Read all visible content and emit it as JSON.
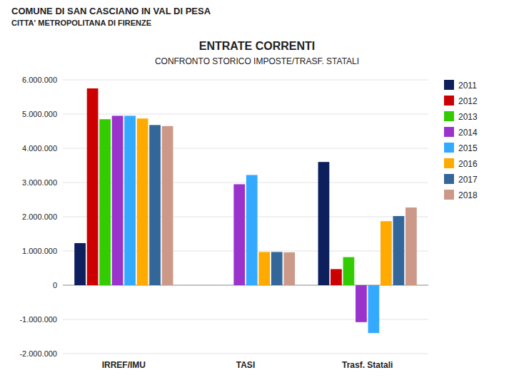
{
  "chart_data": {
    "type": "bar",
    "title": "ENTRATE CORRENTI",
    "subtitle": "CONFRONTO STORICO IMPOSTE/TRASF. STATALI",
    "annotations": [
      "COMUNE DI SAN CASCIANO IN VAL DI PESA",
      "CITTA' METROPOLITANA DI FIRENZE"
    ],
    "categories": [
      "IRREF/IMU",
      "TASI",
      "Trasf. Statali"
    ],
    "series": [
      {
        "name": "2011",
        "color": "#0d1f5c",
        "values": [
          1230000,
          0,
          3600000
        ]
      },
      {
        "name": "2012",
        "color": "#cc0000",
        "values": [
          5750000,
          0,
          470000
        ]
      },
      {
        "name": "2013",
        "color": "#33cc00",
        "values": [
          4850000,
          0,
          820000
        ]
      },
      {
        "name": "2014",
        "color": "#9933cc",
        "values": [
          4950000,
          2950000,
          -1080000
        ]
      },
      {
        "name": "2015",
        "color": "#33aaff",
        "values": [
          4950000,
          3220000,
          -1400000
        ]
      },
      {
        "name": "2016",
        "color": "#ffaa00",
        "values": [
          4870000,
          970000,
          1870000
        ]
      },
      {
        "name": "2017",
        "color": "#336699",
        "values": [
          4680000,
          970000,
          2020000
        ]
      },
      {
        "name": "2018",
        "color": "#cc9988",
        "values": [
          4650000,
          960000,
          2270000
        ]
      }
    ],
    "ylim": [
      -2000000,
      6000000
    ],
    "yticks": [
      {
        "value": -2000000,
        "label": "-2.000.000"
      },
      {
        "value": -1000000,
        "label": "-1.000.000"
      },
      0,
      {
        "value": 1000000,
        "label": "1.000.000"
      },
      {
        "value": 2000000,
        "label": "2.000.000"
      },
      {
        "value": 3000000,
        "label": "3.000.000"
      },
      {
        "value": 4000000,
        "label": "4.000.000"
      },
      {
        "value": 5000000,
        "label": "5.000.000"
      },
      {
        "value": 6000000,
        "label": "6.000.000"
      }
    ],
    "grid": true,
    "legend": "right"
  }
}
